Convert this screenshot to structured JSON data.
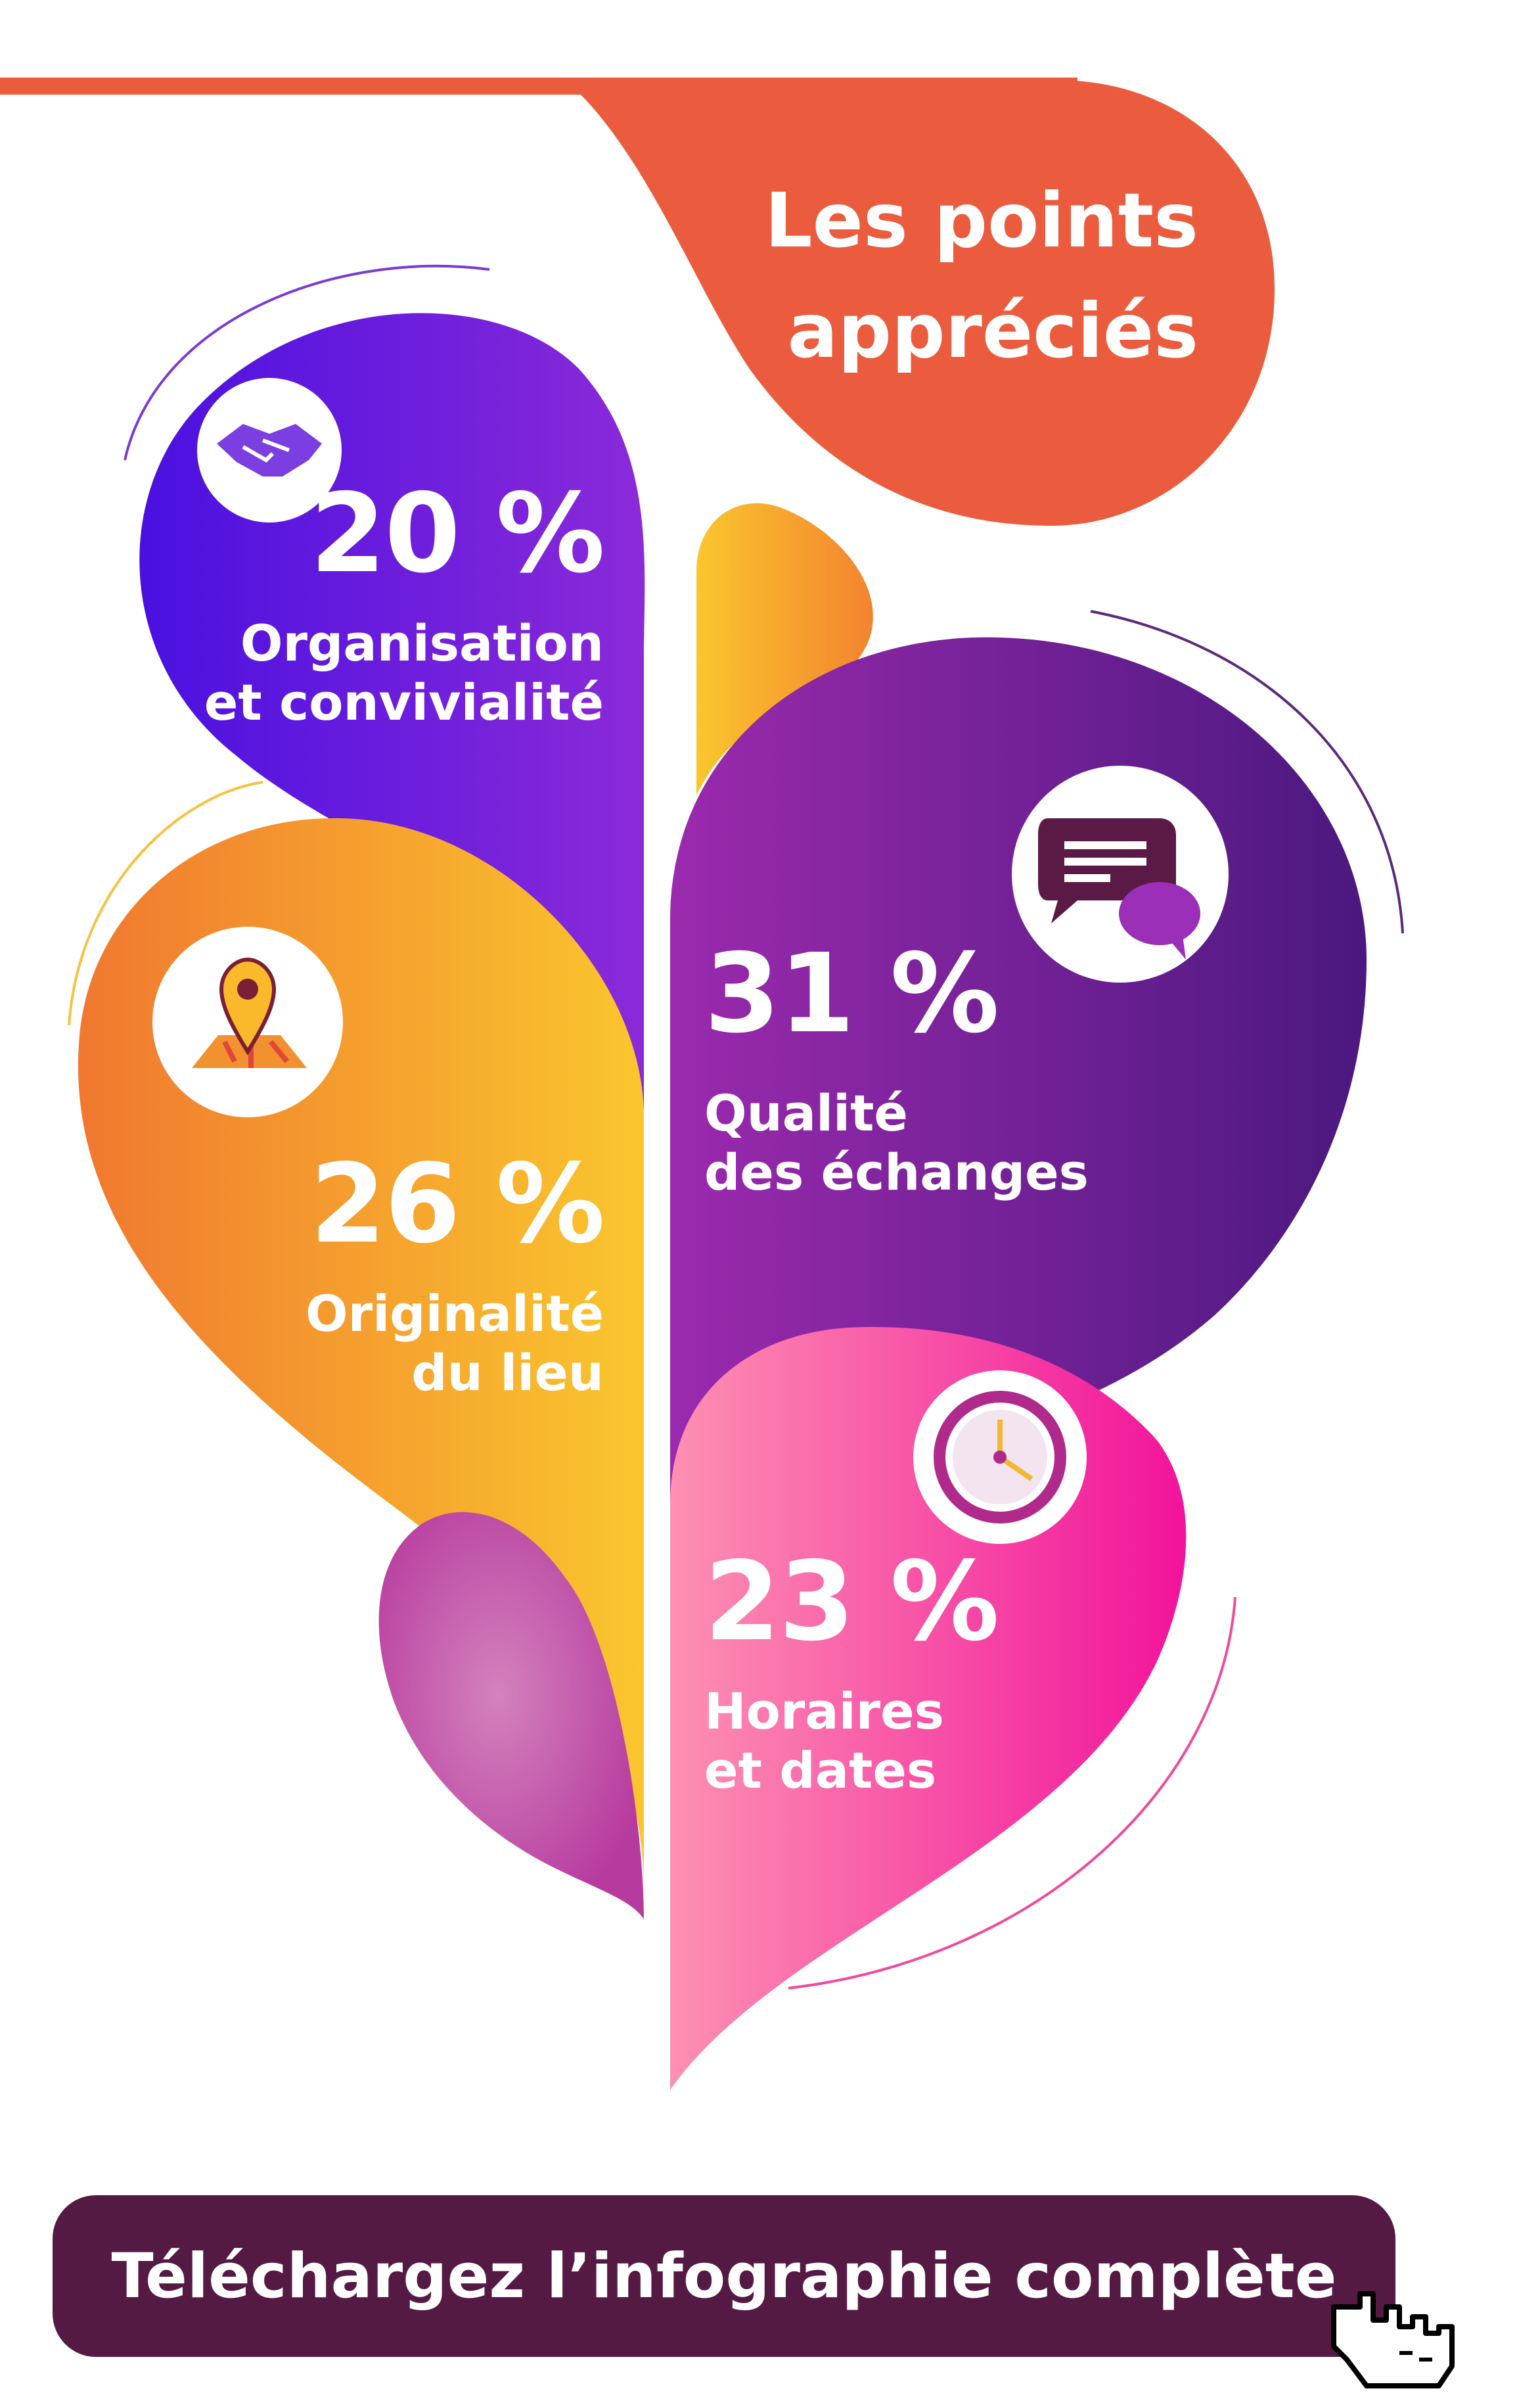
{
  "title": {
    "line1": "Les points",
    "line2": "appréciés"
  },
  "items": [
    {
      "value": "20 %",
      "label_line1": "Organisation",
      "label_line2": "et convivialité",
      "icon": "handshake-icon",
      "color_start": "#4a10e0",
      "color_end": "#8a2bd8"
    },
    {
      "value": "26 %",
      "label_line1": "Originalité",
      "label_line2": "du lieu",
      "icon": "map-pin-icon",
      "color_start": "#f07b2e",
      "color_end": "#f9c92e"
    },
    {
      "value": "31 %",
      "label_line1": "Qualité",
      "label_line2": "des échanges",
      "icon": "chat-bubbles-icon",
      "color_start": "#9a2ab0",
      "color_end": "#4a1880"
    },
    {
      "value": "23 %",
      "label_line1": "Horaires",
      "label_line2": "et dates",
      "icon": "clock-icon",
      "color_start": "#fb8db0",
      "color_end": "#f2129a"
    }
  ],
  "cta": {
    "label": "Téléchargez l’infographie complète",
    "icon": "pointer-hand-icon"
  },
  "colors": {
    "accent_orange": "#ea5c3d",
    "cta_background": "#551a43"
  }
}
